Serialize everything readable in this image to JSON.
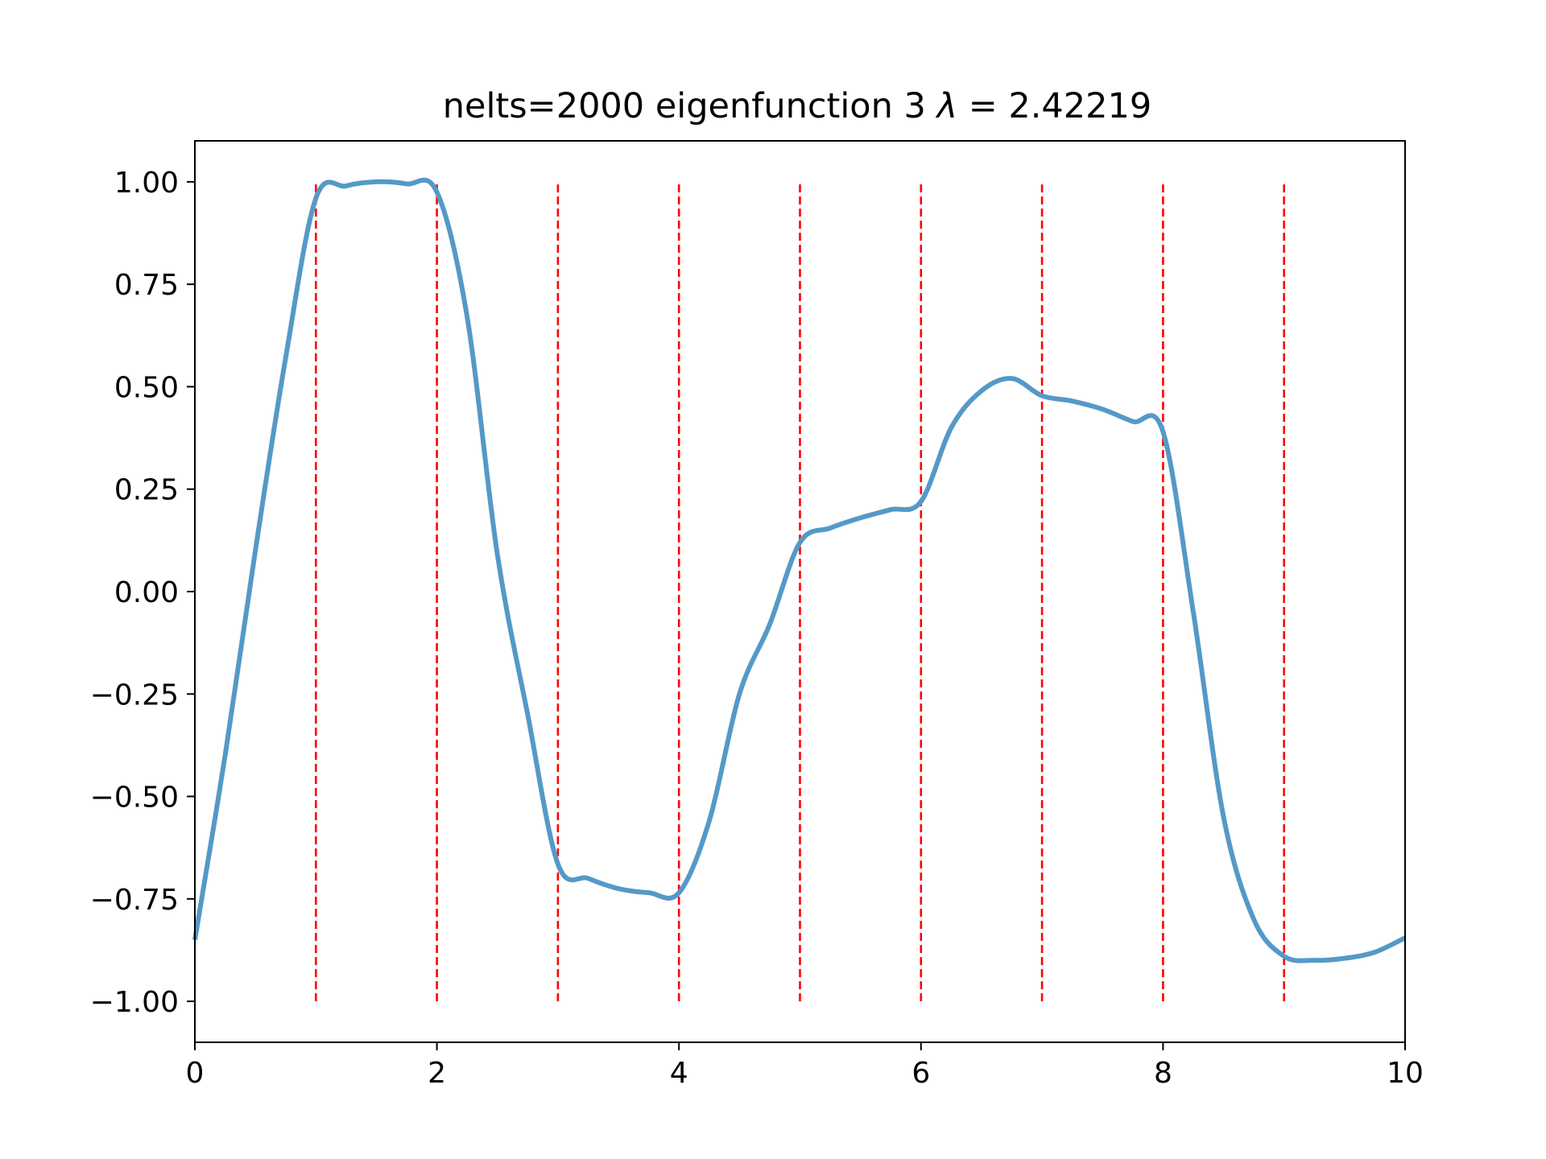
{
  "chart_data": {
    "type": "line",
    "title_prefix": "nelts=2000  eigenfunction 3  ",
    "title_lambda": "λ",
    "title_suffix": " = 2.42219",
    "xlabel": "",
    "ylabel": "",
    "xlim": [
      0,
      10
    ],
    "ylim": [
      -1.1,
      1.1
    ],
    "grid": false,
    "x_ticks": [
      0,
      2,
      4,
      6,
      8,
      10
    ],
    "x_tick_labels": [
      "0",
      "2",
      "4",
      "6",
      "8",
      "10"
    ],
    "y_ticks": [
      1.0,
      0.75,
      0.5,
      0.25,
      0.0,
      -0.25,
      -0.5,
      -0.75,
      -1.0
    ],
    "y_tick_labels": [
      "1.00",
      "0.75",
      "0.50",
      "0.25",
      "0.00",
      "−0.25",
      "−0.50",
      "−0.75",
      "−1.00"
    ],
    "element_boundaries": {
      "x": [
        1,
        2,
        3,
        4,
        5,
        6,
        7,
        8,
        9
      ],
      "y_range": [
        -1.0,
        1.0
      ],
      "color": "#ff0000",
      "style": "dashed"
    },
    "series": [
      {
        "name": "eigenfunction 3",
        "color": "#5599c7",
        "x": [
          0,
          0.25,
          0.5,
          0.75,
          1.0,
          1.25,
          1.5,
          1.75,
          2.0,
          2.25,
          2.5,
          2.75,
          3.0,
          3.25,
          3.5,
          3.75,
          4.0,
          4.25,
          4.5,
          4.75,
          5.0,
          5.25,
          5.5,
          5.75,
          6.0,
          6.25,
          6.5,
          6.75,
          7.0,
          7.25,
          7.5,
          7.75,
          8.0,
          8.25,
          8.5,
          8.75,
          9.0,
          9.25,
          9.5,
          9.75,
          10.0
        ],
        "y": [
          -0.85,
          -0.4,
          0.1,
          0.57,
          0.96,
          0.99,
          1.0,
          0.995,
          0.975,
          0.67,
          0.09,
          -0.3,
          -0.665,
          -0.7,
          -0.725,
          -0.735,
          -0.735,
          -0.56,
          -0.25,
          -0.08,
          0.12,
          0.155,
          0.18,
          0.2,
          0.22,
          0.4,
          0.49,
          0.52,
          0.478,
          0.465,
          0.445,
          0.415,
          0.39,
          -0.05,
          -0.55,
          -0.8,
          -0.89,
          -0.9,
          -0.895,
          -0.88,
          -0.845
        ]
      }
    ]
  }
}
